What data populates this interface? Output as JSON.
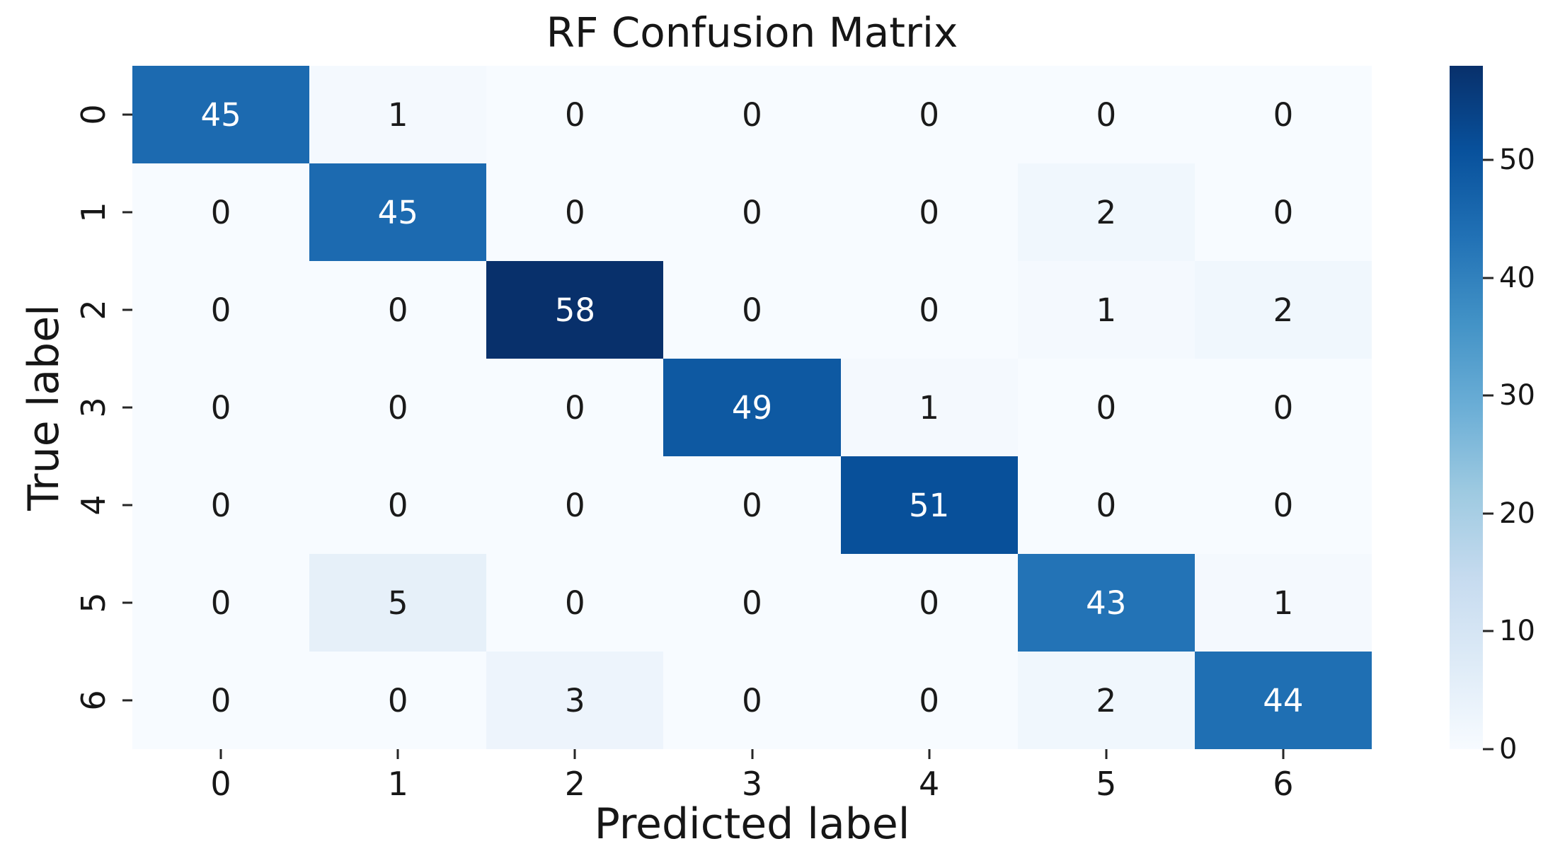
{
  "chart_data": {
    "type": "heatmap",
    "title": "RF Confusion Matrix",
    "xlabel": "Predicted label",
    "ylabel": "True label",
    "x_ticklabels": [
      "0",
      "1",
      "2",
      "3",
      "4",
      "5",
      "6"
    ],
    "y_ticklabels": [
      "0",
      "1",
      "2",
      "3",
      "4",
      "5",
      "6"
    ],
    "matrix": [
      [
        45,
        1,
        0,
        0,
        0,
        0,
        0
      ],
      [
        0,
        45,
        0,
        0,
        0,
        2,
        0
      ],
      [
        0,
        0,
        58,
        0,
        0,
        1,
        2
      ],
      [
        0,
        0,
        0,
        49,
        1,
        0,
        0
      ],
      [
        0,
        0,
        0,
        0,
        51,
        0,
        0
      ],
      [
        0,
        5,
        0,
        0,
        0,
        43,
        1
      ],
      [
        0,
        0,
        3,
        0,
        0,
        2,
        44
      ]
    ],
    "colormap": "Blues",
    "colormap_stops": [
      "#f7fbff",
      "#deebf7",
      "#c6dbef",
      "#9ecae1",
      "#6baed6",
      "#4292c6",
      "#2171b5",
      "#08519c",
      "#08306b"
    ],
    "vmin": 0,
    "vmax": 58,
    "colorbar_ticks": [
      0,
      10,
      20,
      30,
      40,
      50
    ],
    "annotation_color_dark": "#1a1a1a",
    "annotation_color_light": "#ffffff",
    "grid": false,
    "legend_position": "right-colorbar"
  }
}
